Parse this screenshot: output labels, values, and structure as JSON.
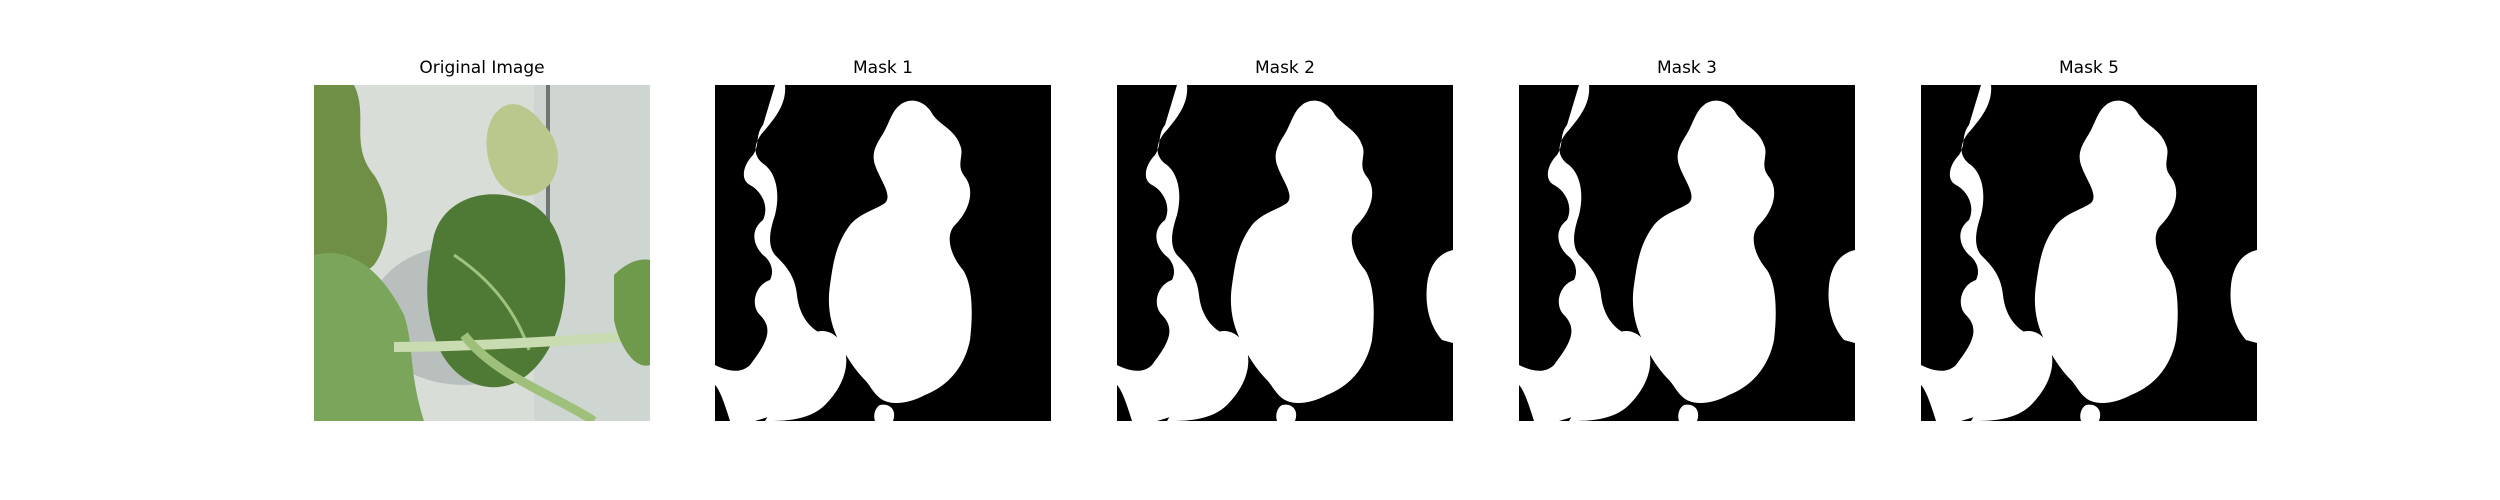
{
  "panels": [
    {
      "id": "original",
      "title": "Original Image"
    },
    {
      "id": "mask1",
      "title": "Mask 1"
    },
    {
      "id": "mask2",
      "title": "Mask 2"
    },
    {
      "id": "mask3",
      "title": "Mask 3"
    },
    {
      "id": "mask5",
      "title": "Mask 5"
    }
  ],
  "colors": {
    "mask_background": "#000000",
    "mask_foreground": "#ffffff",
    "leaf_dark": "#4f7a35",
    "leaf_light": "#8fb56a",
    "wall": "#d6dcd6"
  }
}
